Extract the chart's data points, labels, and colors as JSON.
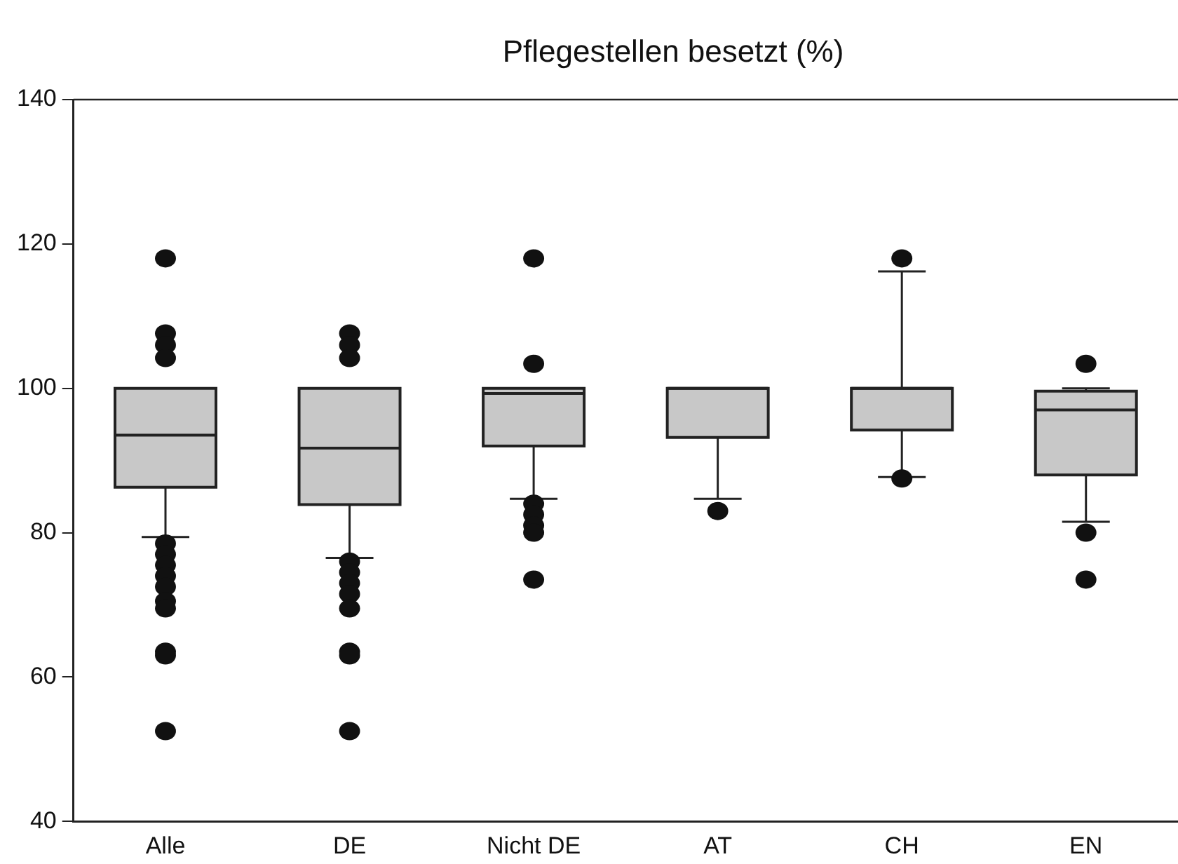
{
  "chart_data": {
    "type": "box",
    "title": "Pflegestellen besetzt (%)",
    "categories": [
      "Alle",
      "DE",
      "Nicht DE",
      "AT",
      "CH",
      "EN"
    ],
    "color": "#c8c8c8",
    "boxes": [
      {
        "low": 79.4,
        "q1": 86.3,
        "median": 93.5,
        "q3": 100,
        "high": 100,
        "outliers": [
          118,
          107.6,
          106,
          104.2,
          78.5,
          77,
          75.5,
          74,
          72.5,
          70.5,
          69.5,
          63.5,
          63,
          52.5
        ]
      },
      {
        "low": 76.5,
        "q1": 83.9,
        "median": 91.7,
        "q3": 100,
        "high": 100,
        "outliers": [
          107.6,
          106,
          104.2,
          76,
          74.5,
          73,
          71.5,
          69.5,
          63.5,
          63,
          52.5
        ]
      },
      {
        "low": 84.7,
        "q1": 92,
        "median": 99.3,
        "q3": 100,
        "high": 100,
        "outliers": [
          118,
          103.4,
          84,
          82.5,
          81,
          80,
          73.5
        ]
      },
      {
        "low": 84.7,
        "q1": 93.2,
        "median": 100,
        "q3": 100,
        "high": 100,
        "outliers": [
          83
        ]
      },
      {
        "low": 87.7,
        "q1": 94.2,
        "median": 100,
        "q3": 100,
        "high": 116.2,
        "outliers": [
          118,
          87.5
        ]
      },
      {
        "low": 81.5,
        "q1": 88,
        "median": 97,
        "q3": 99.6,
        "high": 100,
        "outliers": [
          103.4,
          80,
          73.5
        ]
      }
    ],
    "ylim": [
      40,
      140
    ],
    "yticks": [
      40,
      60,
      80,
      100,
      120,
      140
    ],
    "grid": false,
    "legend": false,
    "marker": "circle"
  }
}
